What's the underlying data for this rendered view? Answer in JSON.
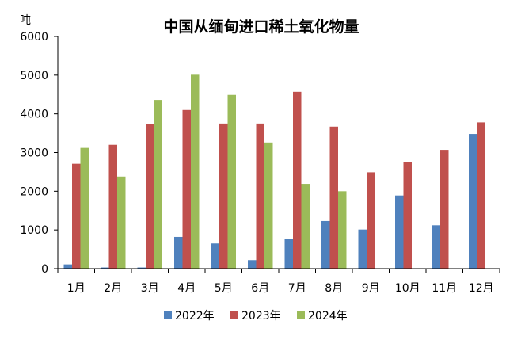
{
  "chart_data": {
    "type": "bar",
    "title": "中国从缅甸进口稀土氧化物量",
    "unit_label": "吨",
    "categories": [
      "1月",
      "2月",
      "3月",
      "4月",
      "5月",
      "6月",
      "7月",
      "8月",
      "9月",
      "10月",
      "11月",
      "12月"
    ],
    "ylim": [
      0,
      6000
    ],
    "yticks": [
      0,
      1000,
      2000,
      3000,
      4000,
      5000,
      6000
    ],
    "grid": false,
    "legend_position": "bottom-center",
    "series": [
      {
        "name": "2022年",
        "color": "#4f81bd",
        "values": [
          110,
          30,
          30,
          820,
          650,
          220,
          760,
          1230,
          1010,
          1890,
          1120,
          3480
        ]
      },
      {
        "name": "2023年",
        "color": "#c0504d",
        "values": [
          2710,
          3200,
          3730,
          4100,
          3750,
          3750,
          4570,
          3670,
          2490,
          2760,
          3070,
          3780
        ]
      },
      {
        "name": "2024年",
        "color": "#9bbb59",
        "values": [
          3120,
          2380,
          4360,
          5010,
          4490,
          3260,
          2190,
          2000,
          null,
          null,
          null,
          null
        ]
      }
    ]
  }
}
